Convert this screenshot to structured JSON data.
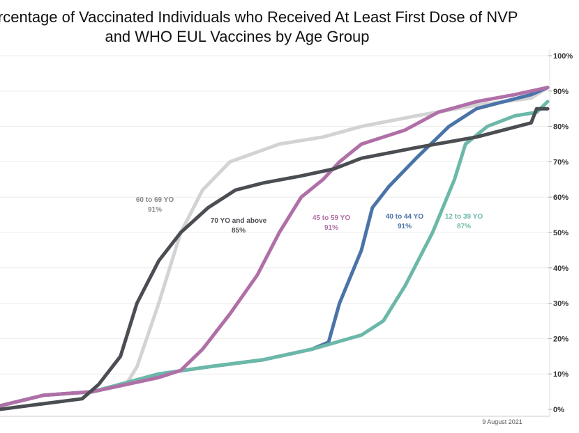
{
  "chart_data": {
    "type": "line",
    "title_line1": "Percentage of Vaccinated Individuals who Received At Least First Dose of NVP",
    "title_line2": "and WHO EUL Vaccines by Age Group",
    "xlabel": "9 August 2021",
    "ylabel": "",
    "ylim": [
      0,
      100
    ],
    "xlim": [
      0,
      100
    ],
    "yticks": [
      "0%",
      "10%",
      "20%",
      "30%",
      "40%",
      "50%",
      "60%",
      "70%",
      "80%",
      "90%",
      "100%"
    ],
    "grid": true,
    "series": [
      {
        "name": "70 YO and above",
        "final": "85%",
        "color": "#4a4d52",
        "x": [
          0,
          5,
          15,
          18,
          22,
          25,
          29,
          33,
          38,
          43,
          48,
          55,
          61,
          66,
          76,
          87,
          92,
          97,
          98,
          100
        ],
        "y": [
          0,
          1,
          3,
          7,
          15,
          30,
          42,
          50,
          57,
          62,
          64,
          66,
          68,
          71,
          74,
          77,
          79,
          81,
          85,
          85
        ]
      },
      {
        "name": "60 to 69 YO",
        "final": "91%",
        "color": "#d3d3d3",
        "x": [
          0,
          8,
          17,
          23,
          25,
          29,
          33,
          37,
          42,
          51,
          59,
          66,
          76,
          87,
          97,
          100
        ],
        "y": [
          1,
          4,
          5,
          7,
          12,
          30,
          50,
          62,
          70,
          75,
          77,
          80,
          83,
          86,
          88,
          91
        ]
      },
      {
        "name": "45 to 59 YO",
        "final": "91%",
        "color": "#b06fa6",
        "x": [
          0,
          8,
          17,
          23,
          29,
          33,
          37,
          42,
          47,
          51,
          55,
          59,
          62,
          66,
          74,
          80,
          87,
          94,
          100
        ],
        "y": [
          1,
          4,
          5,
          7,
          9,
          11,
          17,
          27,
          38,
          50,
          60,
          65,
          70,
          75,
          79,
          84,
          87,
          89,
          91
        ]
      },
      {
        "name": "40 to 44 YO",
        "final": "91%",
        "color": "#4a73a8",
        "x": [
          0,
          8,
          17,
          29,
          38,
          48,
          57,
          60,
          62,
          66,
          68,
          71,
          76,
          82,
          87,
          92,
          97,
          100
        ],
        "y": [
          1,
          4,
          5,
          10,
          12,
          14,
          17,
          19,
          30,
          45,
          57,
          63,
          71,
          80,
          85,
          87,
          89,
          91
        ]
      },
      {
        "name": "12 to 39 YO",
        "final": "87%",
        "color": "#6cb8a8",
        "x": [
          0,
          8,
          17,
          29,
          38,
          48,
          57,
          66,
          70,
          74,
          79,
          83,
          85,
          89,
          94,
          98,
          100
        ],
        "y": [
          1,
          4,
          5,
          10,
          12,
          14,
          17,
          21,
          25,
          35,
          50,
          65,
          75,
          80,
          83,
          84,
          87
        ]
      }
    ]
  }
}
